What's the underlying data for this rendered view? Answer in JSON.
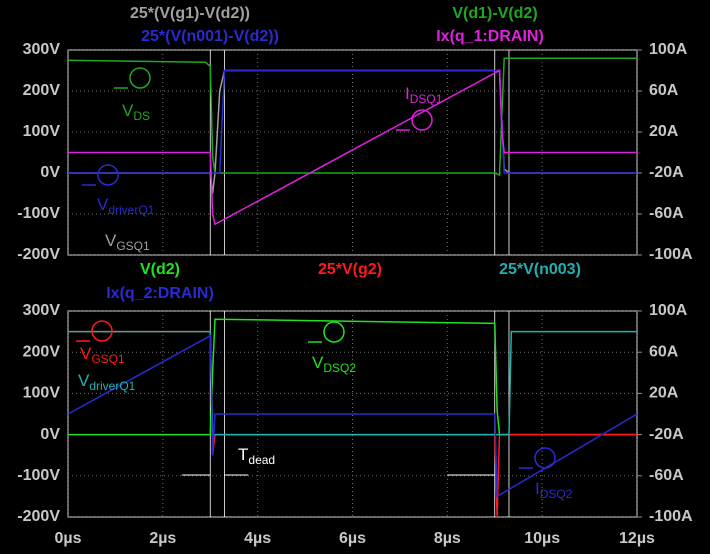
{
  "chart_data": [
    {
      "type": "line",
      "ylim": [
        -200,
        300
      ],
      "yticks": [
        {
          "value": -200,
          "label": "-200V"
        },
        {
          "value": -100,
          "label": "-100V"
        },
        {
          "value": 0,
          "label": "0V"
        },
        {
          "value": 100,
          "label": "100V"
        },
        {
          "value": 200,
          "label": "200V"
        },
        {
          "value": 300,
          "label": "300V"
        }
      ],
      "y2lim": [
        -100,
        100
      ],
      "y2ticks": [
        {
          "value": -100,
          "label": "-100A"
        },
        {
          "value": -60,
          "label": "-60A"
        },
        {
          "value": -20,
          "label": "-20A"
        },
        {
          "value": 20,
          "label": "20A"
        },
        {
          "value": 60,
          "label": "60A"
        },
        {
          "value": 100,
          "label": "100A"
        }
      ],
      "xlim": [
        0,
        12
      ],
      "xticks": [
        0,
        2,
        4,
        6,
        8,
        10,
        12
      ],
      "grid": true,
      "series": [
        {
          "name": "25*(V(g1)-V(d2))",
          "color": "#a0a0a0",
          "x": [
            0,
            3.0,
            3.05,
            3.1,
            3.2,
            3.3,
            9.1,
            9.2,
            9.3,
            12
          ],
          "values": [
            0,
            0,
            -50,
            0,
            200,
            250,
            250,
            10,
            0,
            0
          ]
        },
        {
          "name": "V(d1)-V(d2)",
          "color": "#1fa81f",
          "x": [
            0,
            2.9,
            3.0,
            3.05,
            3.1,
            3.3,
            9.0,
            9.1,
            9.2,
            12
          ],
          "values": [
            275,
            270,
            260,
            40,
            0,
            0,
            0,
            -5,
            280,
            280
          ]
        },
        {
          "name": "25*(V(n001)-V(d2))",
          "color": "#2a2ad0",
          "x": [
            0,
            3.2,
            3.3,
            9.1,
            9.2,
            12
          ],
          "values": [
            0,
            0,
            250,
            250,
            0,
            0
          ]
        },
        {
          "name": "Ix(q_1:DRAIN)",
          "color": "#e020e0",
          "axis": "y2",
          "x": [
            0,
            3.0,
            3.05,
            3.1,
            9.1,
            9.15,
            9.2,
            12
          ],
          "values": [
            0,
            0,
            -60,
            -70,
            80,
            20,
            0,
            0
          ]
        }
      ],
      "annotations": [
        {
          "text": "V",
          "sub": "DS",
          "color": "#1fa81f"
        },
        {
          "text": "V",
          "sub": "driverQ1",
          "color": "#2a2ad0"
        },
        {
          "text": "V",
          "sub": "GSQ1",
          "color": "#a0a0a0"
        },
        {
          "text": "I",
          "sub": "DSQ1",
          "color": "#e020e0"
        }
      ]
    },
    {
      "type": "line",
      "ylim": [
        -200,
        300
      ],
      "yticks": [
        {
          "value": -200,
          "label": "-200V"
        },
        {
          "value": -100,
          "label": "-100V"
        },
        {
          "value": 0,
          "label": "0V"
        },
        {
          "value": 100,
          "label": "100V"
        },
        {
          "value": 200,
          "label": "200V"
        },
        {
          "value": 300,
          "label": "300V"
        }
      ],
      "y2lim": [
        -100,
        100
      ],
      "y2ticks": [
        {
          "value": -100,
          "label": "-100A"
        },
        {
          "value": -60,
          "label": "-60A"
        },
        {
          "value": -20,
          "label": "-20A"
        },
        {
          "value": 20,
          "label": "20A"
        },
        {
          "value": 60,
          "label": "60A"
        },
        {
          "value": 100,
          "label": "100A"
        }
      ],
      "xlim": [
        0,
        12
      ],
      "xticks": [
        {
          "value": 0,
          "label": "0µs"
        },
        {
          "value": 2,
          "label": "2µs"
        },
        {
          "value": 4,
          "label": "4µs"
        },
        {
          "value": 6,
          "label": "6µs"
        },
        {
          "value": 8,
          "label": "8µs"
        },
        {
          "value": 10,
          "label": "10µs"
        },
        {
          "value": 12,
          "label": "12µs"
        }
      ],
      "grid": true,
      "series": [
        {
          "name": "V(d2)",
          "color": "#22e022",
          "x": [
            0,
            3.0,
            3.05,
            3.1,
            9.0,
            9.05,
            9.1,
            12
          ],
          "values": [
            0,
            0,
            150,
            280,
            270,
            60,
            0,
            0
          ]
        },
        {
          "name": "25*V(g2)",
          "color": "#ff1a1a",
          "x": [
            0,
            3.0,
            3.05,
            3.1,
            9.0,
            9.05,
            9.1,
            12
          ],
          "values": [
            250,
            250,
            -50,
            0,
            0,
            -200,
            0,
            0
          ]
        },
        {
          "name": "25*V(n003)",
          "color": "#20b0b0",
          "x": [
            0,
            3.0,
            3.05,
            9.3,
            9.35,
            12
          ],
          "values": [
            250,
            250,
            0,
            0,
            250,
            250
          ]
        },
        {
          "name": "Ix(q_2:DRAIN)",
          "color": "#2a2ad0",
          "axis": "y2",
          "x": [
            0,
            3.0,
            3.05,
            3.1,
            9.0,
            9.05,
            12
          ],
          "values": [
            0,
            76,
            -40,
            0,
            0,
            -80,
            0
          ]
        }
      ],
      "annotations": [
        {
          "text": "V",
          "sub": "GSQ1",
          "color": "#ff1a1a"
        },
        {
          "text": "V",
          "sub": "driverQ1",
          "color": "#20b0b0"
        },
        {
          "text": "V",
          "sub": "DSQ2",
          "color": "#22e022"
        },
        {
          "text": "I",
          "sub": "DSQ2",
          "color": "#2a2ad0"
        },
        {
          "text": "T",
          "sub": "dead",
          "color": "#ffffff"
        }
      ]
    }
  ]
}
